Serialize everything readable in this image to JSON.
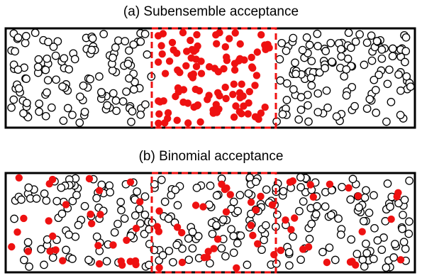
{
  "panel_a": {
    "title": "(a) Subensemble acceptance",
    "acceptance": "subensemble"
  },
  "panel_b": {
    "title": "(b) Binomial acceptance",
    "acceptance": "binomial"
  },
  "colors": {
    "accepted": "#ee1111",
    "not_accepted_stroke": "#000000",
    "box": "#000000",
    "window": "#ee1111"
  },
  "particle_counts": {
    "total_per_panel": 360,
    "subensemble_accepted": 110,
    "binomial_accepted": 80
  }
}
